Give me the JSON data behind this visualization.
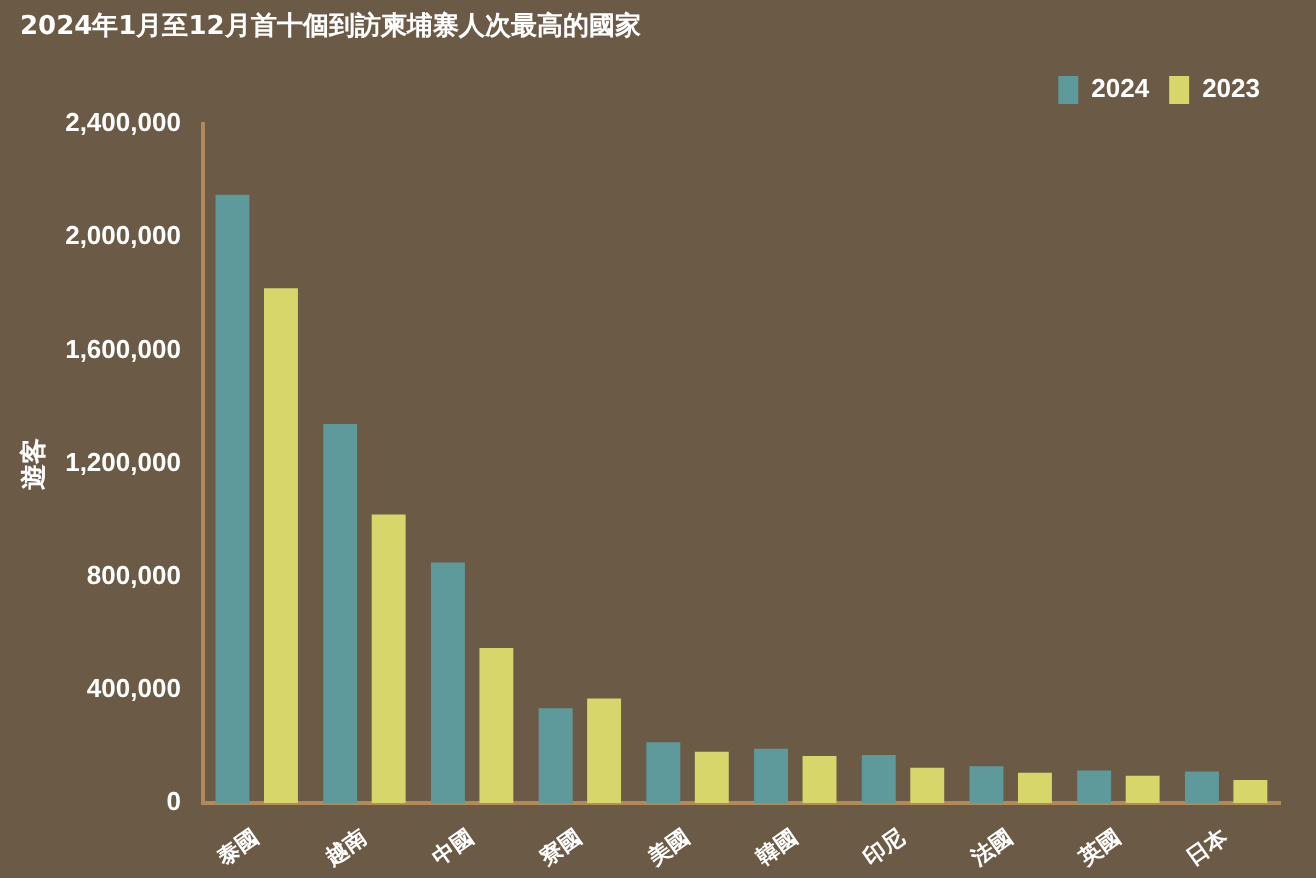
{
  "chart_data": {
    "type": "bar",
    "title": "2024年1月至12月首十個到訪柬埔寨人次最高的國家",
    "ylabel": "遊客",
    "categories": [
      "泰國",
      "越南",
      "中國",
      "寮國",
      "美國",
      "韓國",
      "印尼",
      "法國",
      "英國",
      "日本"
    ],
    "series": [
      {
        "name": "2024",
        "color": "#5e9a9c",
        "values": [
          2150000,
          1340000,
          850000,
          335000,
          215000,
          192000,
          170000,
          130000,
          115000,
          112000
        ]
      },
      {
        "name": "2023",
        "color": "#d6d66a",
        "values": [
          1820000,
          1020000,
          548000,
          370000,
          182000,
          167000,
          125000,
          107000,
          97000,
          82000
        ]
      }
    ],
    "ylim": [
      0,
      2400000
    ],
    "yticks": [
      0,
      {
        "value": 400000,
        "label": "400,000"
      },
      {
        "value": 800000,
        "label": "800,000"
      },
      {
        "value": 1200000,
        "label": "1,200,000"
      },
      {
        "value": 1600000,
        "label": "1,600,000"
      },
      {
        "value": 2000000,
        "label": "2,000,000"
      },
      {
        "value": 2400000,
        "label": "2,400,000"
      }
    ],
    "grid": false,
    "legend": "top right"
  }
}
